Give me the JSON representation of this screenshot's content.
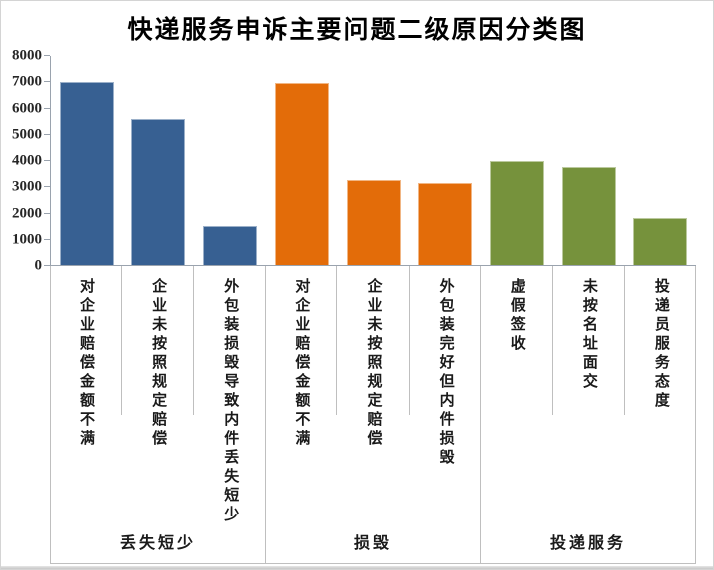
{
  "title": "快递服务申诉主要问题二级原因分类图",
  "chart_data": {
    "type": "bar",
    "title": "快递服务申诉主要问题二级原因分类图",
    "xlabel": "",
    "ylabel": "",
    "ylim": [
      0,
      8000
    ],
    "ytick_step": 1000,
    "yticks": [
      0,
      1000,
      2000,
      3000,
      4000,
      5000,
      6000,
      7000,
      8000
    ],
    "grid": false,
    "legend": "none",
    "categories": [
      "对企业赔偿金额不满",
      "企业未按照规定赔偿",
      "外包装损毁导致内件丢失短少",
      "对企业赔偿金额不满",
      "企业未按照规定赔偿",
      "外包装完好但内件损毁",
      "虚假签收",
      "未按名址面交",
      "投递员服务态度"
    ],
    "values": [
      7000,
      5600,
      1500,
      6950,
      3250,
      3150,
      4000,
      3750,
      1800
    ],
    "group_labels": [
      "丢失短少",
      "损毁",
      "投递服务"
    ],
    "groups": [
      {
        "name": "丢失短少",
        "color": "#376092",
        "bars": [
          {
            "label": "对企业赔偿金额不满",
            "value": 7000
          },
          {
            "label": "企业未按照规定赔偿",
            "value": 5600
          },
          {
            "label": "外包装损毁导致内件丢失短少",
            "value": 1500
          }
        ]
      },
      {
        "name": "损毁",
        "color": "#E36C09",
        "bars": [
          {
            "label": "对企业赔偿金额不满",
            "value": 6950
          },
          {
            "label": "企业未按照规定赔偿",
            "value": 3250
          },
          {
            "label": "外包装完好但内件损毁",
            "value": 3150
          }
        ]
      },
      {
        "name": "投递服务",
        "color": "#76923C",
        "bars": [
          {
            "label": "虚假签收",
            "value": 4000
          },
          {
            "label": "未按名址面交",
            "value": 3750
          },
          {
            "label": "投递员服务态度",
            "value": 1800
          }
        ]
      }
    ],
    "colors": {
      "bar_blue": "#376092",
      "bar_orange": "#E36C09",
      "bar_green": "#76923C",
      "axis_line": "#9aa3ae",
      "separator_line": "#bfbfbf",
      "label_text": "#1a1a1a"
    }
  }
}
